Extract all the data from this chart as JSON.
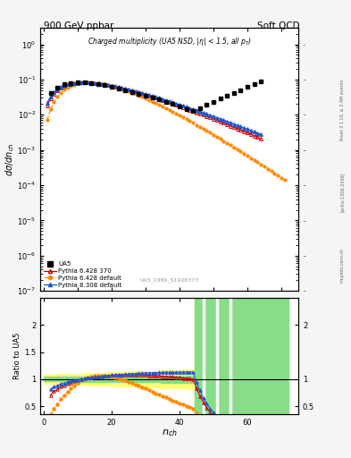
{
  "title_top_left": "900 GeV ppbar",
  "title_top_right": "Soft QCD",
  "plot_title": "Charged multiplicity (UA5 NSD, |\\eta| < 1.5, all p_{T})",
  "ylabel_main": "d\\sigma/dn_{ch}",
  "ylabel_ratio": "Ratio to UA5",
  "xlabel": "n_{ch}",
  "watermark": "UA5_1989_S1926373",
  "ylim_main_lo": 1e-07,
  "ylim_main_hi": 3.0,
  "ylim_ratio_lo": 0.35,
  "ylim_ratio_hi": 2.5,
  "xlim_lo": -1,
  "xlim_hi": 75,
  "color_ua5": "#000000",
  "color_p6370": "#cc0000",
  "color_p6def": "#ff8800",
  "color_p8def": "#2255cc",
  "color_yellow": "#ffff77",
  "color_green": "#88dd88",
  "bg_color": "#f5f5f5"
}
